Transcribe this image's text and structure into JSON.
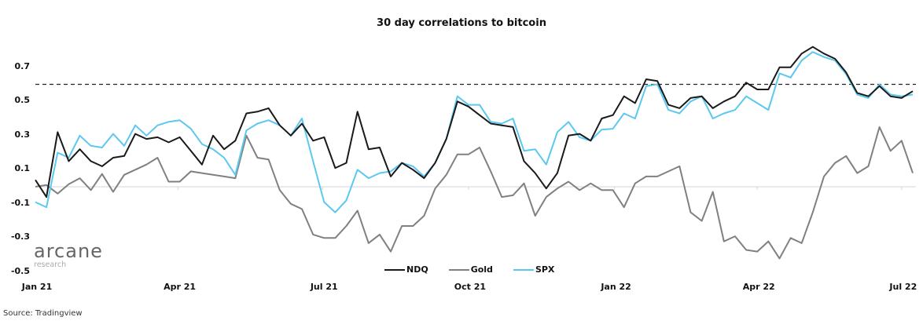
{
  "chart_data": {
    "type": "line",
    "title": "30 day correlations to bitcoin",
    "xlabel": "",
    "ylabel": "",
    "xlim": [
      "2021-01-01",
      "2022-07-10"
    ],
    "ylim": [
      -0.5,
      0.85
    ],
    "y_ticks": [
      "0.7",
      "0.5",
      "0.3",
      "0.1",
      "-0.1",
      "-0.3",
      "-0.5"
    ],
    "y_tick_values": [
      0.7,
      0.5,
      0.3,
      0.1,
      -0.1,
      -0.3,
      -0.5
    ],
    "x_ticks": [
      {
        "label": "Jan 21",
        "date": "2021-01-01"
      },
      {
        "label": "Apr 21",
        "date": "2021-04-01"
      },
      {
        "label": "Jul 21",
        "date": "2021-07-01"
      },
      {
        "label": "Oct 21",
        "date": "2021-10-01"
      },
      {
        "label": "Jan 22",
        "date": "2022-01-01"
      },
      {
        "label": "Apr 22",
        "date": "2022-04-01"
      },
      {
        "label": "Jul 22",
        "date": "2022-07-01"
      }
    ],
    "reference_line": {
      "value": 0.6,
      "style": "dashed",
      "color": "#222222"
    },
    "zero_line": {
      "value": 0,
      "color": "#d4d6dc"
    },
    "grid": false,
    "legend_position": "bottom-center",
    "x": [
      "2021-01-01",
      "2021-01-08",
      "2021-01-15",
      "2021-01-22",
      "2021-01-29",
      "2021-02-05",
      "2021-02-12",
      "2021-02-19",
      "2021-02-26",
      "2021-03-05",
      "2021-03-12",
      "2021-03-19",
      "2021-03-26",
      "2021-04-02",
      "2021-04-09",
      "2021-04-16",
      "2021-04-23",
      "2021-04-30",
      "2021-05-07",
      "2021-05-14",
      "2021-05-21",
      "2021-05-28",
      "2021-06-04",
      "2021-06-11",
      "2021-06-18",
      "2021-06-25",
      "2021-07-02",
      "2021-07-09",
      "2021-07-16",
      "2021-07-23",
      "2021-07-30",
      "2021-08-06",
      "2021-08-13",
      "2021-08-20",
      "2021-08-27",
      "2021-09-03",
      "2021-09-10",
      "2021-09-17",
      "2021-09-24",
      "2021-10-01",
      "2021-10-08",
      "2021-10-15",
      "2021-10-22",
      "2021-10-29",
      "2021-11-05",
      "2021-11-12",
      "2021-11-19",
      "2021-11-26",
      "2021-12-03",
      "2021-12-10",
      "2021-12-17",
      "2021-12-24",
      "2021-12-31",
      "2022-01-07",
      "2022-01-14",
      "2022-01-21",
      "2022-01-28",
      "2022-02-04",
      "2022-02-11",
      "2022-02-18",
      "2022-02-25",
      "2022-03-04",
      "2022-03-11",
      "2022-03-18",
      "2022-03-25",
      "2022-04-01",
      "2022-04-08",
      "2022-04-15",
      "2022-04-22",
      "2022-04-29",
      "2022-05-06",
      "2022-05-13",
      "2022-05-20",
      "2022-05-27",
      "2022-06-03",
      "2022-06-10",
      "2022-06-17",
      "2022-06-24",
      "2022-07-01",
      "2022-07-08"
    ],
    "series": [
      {
        "name": "NDQ",
        "color": "#1a1a1a",
        "values": [
          0.04,
          -0.06,
          0.32,
          0.15,
          0.22,
          0.15,
          0.12,
          0.17,
          0.18,
          0.31,
          0.28,
          0.29,
          0.26,
          0.29,
          0.21,
          0.13,
          0.3,
          0.22,
          0.27,
          0.43,
          0.44,
          0.46,
          0.36,
          0.3,
          0.37,
          0.27,
          0.29,
          0.11,
          0.14,
          0.44,
          0.22,
          0.23,
          0.06,
          0.14,
          0.1,
          0.05,
          0.14,
          0.28,
          0.5,
          0.47,
          0.42,
          0.37,
          0.36,
          0.35,
          0.15,
          0.08,
          -0.01,
          0.08,
          0.3,
          0.31,
          0.27,
          0.4,
          0.42,
          0.53,
          0.49,
          0.63,
          0.62,
          0.48,
          0.46,
          0.52,
          0.53,
          0.46,
          0.5,
          0.53,
          0.61,
          0.57,
          0.57,
          0.7,
          0.7,
          0.78,
          0.82,
          0.78,
          0.75,
          0.67,
          0.55,
          0.53,
          0.59,
          0.53,
          0.52,
          0.56
        ]
      },
      {
        "name": "Gold",
        "color": "#808080",
        "values": [
          0.0,
          0.01,
          -0.04,
          0.015,
          0.05,
          -0.02,
          0.075,
          -0.03,
          0.07,
          0.1,
          0.13,
          0.17,
          0.03,
          0.03,
          0.09,
          0.08,
          0.07,
          0.06,
          0.05,
          0.3,
          0.17,
          0.16,
          -0.02,
          -0.1,
          -0.13,
          -0.28,
          -0.3,
          -0.3,
          -0.23,
          -0.14,
          -0.33,
          -0.28,
          -0.38,
          -0.23,
          -0.23,
          -0.17,
          -0.01,
          0.07,
          0.19,
          0.19,
          0.23,
          0.09,
          -0.06,
          -0.05,
          0.02,
          -0.17,
          -0.06,
          -0.01,
          0.03,
          -0.02,
          0.02,
          -0.02,
          -0.02,
          -0.12,
          0.02,
          0.06,
          0.06,
          0.09,
          0.12,
          -0.15,
          -0.2,
          -0.03,
          -0.32,
          -0.29,
          -0.37,
          -0.38,
          -0.32,
          -0.42,
          -0.3,
          -0.33,
          -0.15,
          0.06,
          0.14,
          0.18,
          0.08,
          0.12,
          0.35,
          0.21,
          0.27,
          0.08
        ]
      },
      {
        "name": "SPX",
        "color": "#5bc8f0",
        "values": [
          -0.09,
          -0.12,
          0.2,
          0.17,
          0.3,
          0.24,
          0.23,
          0.31,
          0.24,
          0.36,
          0.3,
          0.36,
          0.38,
          0.39,
          0.34,
          0.25,
          0.22,
          0.17,
          0.07,
          0.33,
          0.37,
          0.39,
          0.36,
          0.3,
          0.4,
          0.15,
          -0.09,
          -0.15,
          -0.08,
          0.1,
          0.05,
          0.08,
          0.09,
          0.14,
          0.12,
          0.06,
          0.14,
          0.28,
          0.53,
          0.48,
          0.48,
          0.38,
          0.37,
          0.4,
          0.21,
          0.22,
          0.13,
          0.32,
          0.38,
          0.29,
          0.27,
          0.335,
          0.34,
          0.43,
          0.4,
          0.59,
          0.6,
          0.45,
          0.43,
          0.5,
          0.53,
          0.4,
          0.43,
          0.45,
          0.53,
          0.49,
          0.45,
          0.665,
          0.64,
          0.74,
          0.79,
          0.76,
          0.74,
          0.66,
          0.54,
          0.52,
          0.6,
          0.54,
          0.53,
          0.54
        ]
      }
    ]
  },
  "logo": {
    "main": "arcane",
    "sub": "research"
  },
  "source": "Source: Tradingview"
}
